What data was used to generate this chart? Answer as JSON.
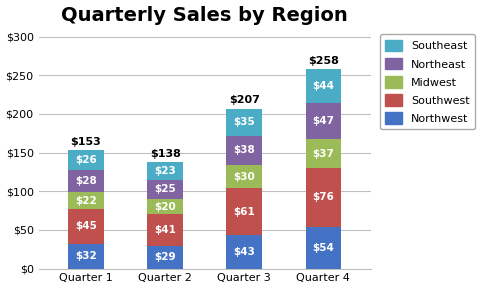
{
  "title": "Quarterly Sales by Region",
  "categories": [
    "Quarter 1",
    "Quarter 2",
    "Quarter 3",
    "Quarter 4"
  ],
  "series": [
    {
      "label": "Northwest",
      "values": [
        32,
        29,
        43,
        54
      ],
      "color": "#4472C4"
    },
    {
      "label": "Southwest",
      "values": [
        45,
        41,
        61,
        76
      ],
      "color": "#C0504D"
    },
    {
      "label": "Midwest",
      "values": [
        22,
        20,
        30,
        37
      ],
      "color": "#9BBB59"
    },
    {
      "label": "Northeast",
      "values": [
        28,
        25,
        38,
        47
      ],
      "color": "#8064A2"
    },
    {
      "label": "Southeast",
      "values": [
        26,
        23,
        35,
        44
      ],
      "color": "#4BACC6"
    }
  ],
  "totals": [
    153,
    138,
    207,
    258
  ],
  "ylim": [
    0,
    310
  ],
  "yticks": [
    0,
    50,
    100,
    150,
    200,
    250,
    300
  ],
  "ytick_labels": [
    "$0",
    "$50",
    "$100",
    "$150",
    "$200",
    "$250",
    "$300"
  ],
  "bar_width": 0.45,
  "figure_bg": "#FFFFFF",
  "plot_bg": "#FFFFFF",
  "grid_color": "#C0C0C0",
  "title_fontsize": 14,
  "label_fontsize": 7.5,
  "total_fontsize": 8,
  "axis_fontsize": 8,
  "legend_fontsize": 8
}
